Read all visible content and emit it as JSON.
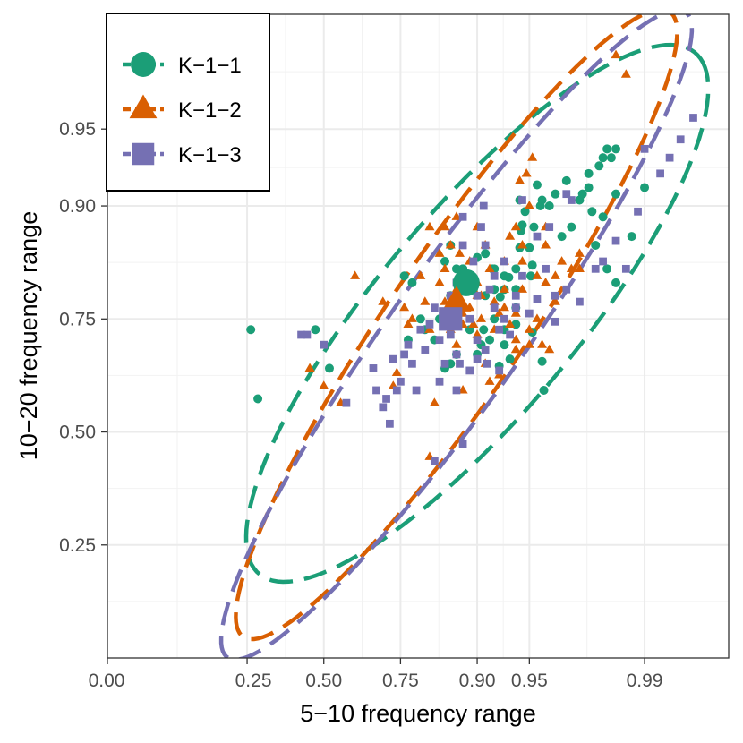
{
  "chart_data": {
    "type": "scatter",
    "xlabel": "5−10 frequency range",
    "ylabel": "10−20 frequency range",
    "transform": "logit",
    "xlim": [
      0.0,
      0.997
    ],
    "ylim": [
      0.1,
      0.983
    ],
    "x_ticks": [
      0.0,
      0.25,
      0.5,
      0.75,
      0.9,
      0.95,
      0.99
    ],
    "x_tick_labels": [
      "0.00",
      "0.25",
      "0.50",
      "0.75",
      "0.90",
      "0.95",
      "0.99"
    ],
    "y_ticks": [
      0.25,
      0.5,
      0.75,
      0.9,
      0.95
    ],
    "y_tick_labels": [
      "0.25",
      "0.50",
      "0.75",
      "0.90",
      "0.95"
    ],
    "grid": true,
    "legend_position": "top-left",
    "series": [
      {
        "name": "K−1−1",
        "color": "#1b9e77",
        "marker": "circle",
        "centroid": [
          0.885,
          0.81
        ],
        "points": [
          [
            0.26,
            0.73
          ],
          [
            0.28,
            0.58
          ],
          [
            0.47,
            0.73
          ],
          [
            0.52,
            0.65
          ],
          [
            0.76,
            0.82
          ],
          [
            0.78,
            0.81
          ],
          [
            0.8,
            0.75
          ],
          [
            0.81,
            0.73
          ],
          [
            0.77,
            0.71
          ],
          [
            0.83,
            0.71
          ],
          [
            0.84,
            0.75
          ],
          [
            0.86,
            0.79
          ],
          [
            0.85,
            0.84
          ],
          [
            0.86,
            0.86
          ],
          [
            0.87,
            0.83
          ],
          [
            0.88,
            0.83
          ],
          [
            0.87,
            0.79
          ],
          [
            0.89,
            0.8
          ],
          [
            0.88,
            0.77
          ],
          [
            0.89,
            0.73
          ],
          [
            0.87,
            0.68
          ],
          [
            0.86,
            0.66
          ],
          [
            0.85,
            0.65
          ],
          [
            0.9,
            0.68
          ],
          [
            0.91,
            0.85
          ],
          [
            0.91,
            0.79
          ],
          [
            0.92,
            0.83
          ],
          [
            0.92,
            0.8
          ],
          [
            0.93,
            0.82
          ],
          [
            0.93,
            0.8
          ],
          [
            0.92,
            0.75
          ],
          [
            0.93,
            0.73
          ],
          [
            0.93,
            0.7
          ],
          [
            0.94,
            0.74
          ],
          [
            0.94,
            0.77
          ],
          [
            0.94,
            0.8
          ],
          [
            0.94,
            0.83
          ],
          [
            0.943,
            0.857
          ],
          [
            0.944,
            0.876
          ],
          [
            0.945,
            0.882
          ],
          [
            0.947,
            0.895
          ],
          [
            0.95,
            0.857
          ],
          [
            0.952,
            0.835
          ],
          [
            0.951,
            0.82
          ],
          [
            0.953,
            0.88
          ],
          [
            0.955,
            0.917
          ],
          [
            0.957,
            0.9
          ],
          [
            0.958,
            0.905
          ],
          [
            0.952,
            0.725
          ],
          [
            0.958,
            0.665
          ],
          [
            0.959,
            0.6
          ],
          [
            0.962,
            0.9
          ],
          [
            0.965,
            0.91
          ],
          [
            0.968,
            0.87
          ],
          [
            0.97,
            0.92
          ],
          [
            0.972,
            0.88
          ],
          [
            0.975,
            0.905
          ],
          [
            0.976,
            0.91
          ],
          [
            0.978,
            0.925
          ],
          [
            0.978,
            0.915
          ],
          [
            0.979,
            0.895
          ],
          [
            0.98,
            0.86
          ],
          [
            0.981,
            0.93
          ],
          [
            0.982,
            0.89
          ],
          [
            0.985,
            0.81
          ],
          [
            0.983,
            0.83
          ],
          [
            0.982,
            0.935
          ],
          [
            0.983,
            0.94
          ],
          [
            0.984,
            0.935
          ],
          [
            0.985,
            0.94
          ],
          [
            0.985,
            0.91
          ],
          [
            0.988,
            0.87
          ],
          [
            0.99,
            0.915
          ],
          [
            0.943,
            0.905
          ],
          [
            0.934,
            0.818
          ],
          [
            0.926,
            0.788
          ],
          [
            0.918,
            0.83
          ],
          [
            0.908,
            0.73
          ],
          [
            0.9,
            0.845
          ],
          [
            0.895,
            0.8
          ],
          [
            0.88,
            0.83
          ],
          [
            0.905,
            0.7
          ],
          [
            0.915,
            0.71
          ],
          [
            0.935,
            0.67
          ],
          [
            0.925,
            0.655
          ]
        ]
      },
      {
        "name": "K−1−2",
        "color": "#d95f02",
        "marker": "triangle",
        "centroid": [
          0.87,
          0.78
        ],
        "points": [
          [
            0.45,
            0.65
          ],
          [
            0.5,
            0.61
          ],
          [
            0.56,
            0.57
          ],
          [
            0.61,
            0.82
          ],
          [
            0.7,
            0.78
          ],
          [
            0.73,
            0.61
          ],
          [
            0.74,
            0.64
          ],
          [
            0.76,
            0.77
          ],
          [
            0.77,
            0.74
          ],
          [
            0.78,
            0.75
          ],
          [
            0.8,
            0.82
          ],
          [
            0.81,
            0.78
          ],
          [
            0.82,
            0.73
          ],
          [
            0.82,
            0.44
          ],
          [
            0.82,
            0.88
          ],
          [
            0.83,
            0.57
          ],
          [
            0.84,
            0.81
          ],
          [
            0.84,
            0.85
          ],
          [
            0.85,
            0.83
          ],
          [
            0.85,
            0.88
          ],
          [
            0.85,
            0.78
          ],
          [
            0.86,
            0.76
          ],
          [
            0.86,
            0.73
          ],
          [
            0.86,
            0.86
          ],
          [
            0.87,
            0.8
          ],
          [
            0.87,
            0.7
          ],
          [
            0.87,
            0.89
          ],
          [
            0.88,
            0.76
          ],
          [
            0.88,
            0.74
          ],
          [
            0.88,
            0.6
          ],
          [
            0.89,
            0.77
          ],
          [
            0.89,
            0.84
          ],
          [
            0.9,
            0.88
          ],
          [
            0.9,
            0.81
          ],
          [
            0.9,
            0.72
          ],
          [
            0.9,
            0.79
          ],
          [
            0.905,
            0.75
          ],
          [
            0.91,
            0.86
          ],
          [
            0.91,
            0.66
          ],
          [
            0.915,
            0.83
          ],
          [
            0.92,
            0.78
          ],
          [
            0.92,
            0.73
          ],
          [
            0.925,
            0.76
          ],
          [
            0.93,
            0.8
          ],
          [
            0.93,
            0.84
          ],
          [
            0.935,
            0.74
          ],
          [
            0.94,
            0.76
          ],
          [
            0.94,
            0.71
          ],
          [
            0.94,
            0.69
          ],
          [
            0.945,
            0.8
          ],
          [
            0.945,
            0.84
          ],
          [
            0.95,
            0.9
          ],
          [
            0.95,
            0.73
          ],
          [
            0.955,
            0.82
          ],
          [
            0.955,
            0.75
          ],
          [
            0.96,
            0.81
          ],
          [
            0.96,
            0.86
          ],
          [
            0.965,
            0.78
          ],
          [
            0.965,
            0.82
          ],
          [
            0.968,
            0.84
          ],
          [
            0.972,
            0.83
          ],
          [
            0.975,
            0.85
          ],
          [
            0.975,
            0.83
          ],
          [
            0.943,
            0.92
          ],
          [
            0.948,
            0.925
          ],
          [
            0.952,
            0.935
          ],
          [
            0.96,
            0.88
          ],
          [
            0.985,
            0.975
          ],
          [
            0.987,
            0.97
          ],
          [
            0.962,
            0.69
          ],
          [
            0.958,
            0.7
          ],
          [
            0.95,
            0.7
          ],
          [
            0.925,
            0.635
          ],
          [
            0.915,
            0.62
          ],
          [
            0.905,
            0.79
          ],
          [
            0.895,
            0.74
          ],
          [
            0.885,
            0.82
          ],
          [
            0.875,
            0.85
          ],
          [
            0.865,
            0.79
          ],
          [
            0.93,
            0.77
          ],
          [
            0.935,
            0.87
          ],
          [
            0.94,
            0.88
          ],
          [
            0.945,
            0.86
          ]
        ]
      },
      {
        "name": "K−1−3",
        "color": "#7570b3",
        "marker": "square",
        "centroid": [
          0.86,
          0.75
        ],
        "points": [
          [
            0.42,
            0.72
          ],
          [
            0.44,
            0.72
          ],
          [
            0.5,
            0.7
          ],
          [
            0.58,
            0.57
          ],
          [
            0.67,
            0.65
          ],
          [
            0.68,
            0.6
          ],
          [
            0.7,
            0.56
          ],
          [
            0.71,
            0.58
          ],
          [
            0.72,
            0.52
          ],
          [
            0.73,
            0.67
          ],
          [
            0.74,
            0.6
          ],
          [
            0.75,
            0.62
          ],
          [
            0.76,
            0.68
          ],
          [
            0.77,
            0.7
          ],
          [
            0.78,
            0.66
          ],
          [
            0.79,
            0.6
          ],
          [
            0.8,
            0.73
          ],
          [
            0.81,
            0.69
          ],
          [
            0.82,
            0.74
          ],
          [
            0.83,
            0.77
          ],
          [
            0.84,
            0.71
          ],
          [
            0.84,
            0.62
          ],
          [
            0.85,
            0.66
          ],
          [
            0.86,
            0.72
          ],
          [
            0.86,
            0.79
          ],
          [
            0.87,
            0.81
          ],
          [
            0.87,
            0.68
          ],
          [
            0.88,
            0.89
          ],
          [
            0.88,
            0.86
          ],
          [
            0.89,
            0.82
          ],
          [
            0.89,
            0.75
          ],
          [
            0.9,
            0.79
          ],
          [
            0.9,
            0.71
          ],
          [
            0.905,
            0.88
          ],
          [
            0.91,
            0.86
          ],
          [
            0.91,
            0.69
          ],
          [
            0.915,
            0.8
          ],
          [
            0.92,
            0.77
          ],
          [
            0.92,
            0.82
          ],
          [
            0.925,
            0.73
          ],
          [
            0.93,
            0.84
          ],
          [
            0.93,
            0.75
          ],
          [
            0.94,
            0.77
          ],
          [
            0.94,
            0.79
          ],
          [
            0.945,
            0.82
          ],
          [
            0.95,
            0.76
          ],
          [
            0.955,
            0.87
          ],
          [
            0.96,
            0.83
          ],
          [
            0.962,
            0.88
          ],
          [
            0.965,
            0.79
          ],
          [
            0.97,
            0.8
          ],
          [
            0.975,
            0.78
          ],
          [
            0.98,
            0.83
          ],
          [
            0.982,
            0.84
          ],
          [
            0.985,
            0.865
          ],
          [
            0.987,
            0.83
          ],
          [
            0.989,
            0.895
          ],
          [
            0.99,
            0.94
          ],
          [
            0.992,
            0.925
          ],
          [
            0.993,
            0.935
          ],
          [
            0.994,
            0.945
          ],
          [
            0.995,
            0.955
          ],
          [
            0.97,
            0.91
          ],
          [
            0.972,
            0.905
          ],
          [
            0.88,
            0.47
          ],
          [
            0.83,
            0.43
          ],
          [
            0.87,
            0.6
          ],
          [
            0.875,
            0.66
          ],
          [
            0.89,
            0.645
          ],
          [
            0.9,
            0.67
          ],
          [
            0.912,
            0.66
          ],
          [
            0.925,
            0.645
          ],
          [
            0.935,
            0.72
          ],
          [
            0.945,
            0.905
          ],
          [
            0.955,
            0.785
          ],
          [
            0.965,
            0.745
          ],
          [
            0.908,
            0.9
          ],
          [
            0.895,
            0.84
          ]
        ]
      }
    ],
    "ellipses": [
      {
        "series": "K−1−1",
        "center": [
          0.9,
          0.76
        ],
        "a": 4.05,
        "b": 1.17,
        "angle_deg": 37,
        "color": "#1b9e77"
      },
      {
        "series": "K−1−2",
        "center": [
          0.87,
          0.74
        ],
        "a": 4.32,
        "b": 0.84,
        "angle_deg": 44,
        "color": "#d95f02"
      },
      {
        "series": "K−1−3",
        "center": [
          0.87,
          0.72
        ],
        "a": 4.55,
        "b": 0.8,
        "angle_deg": 43,
        "color": "#7570b3"
      }
    ]
  }
}
